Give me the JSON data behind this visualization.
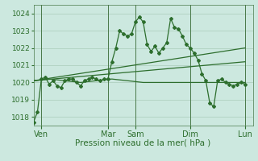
{
  "background_color": "#cce8df",
  "grid_color": "#aaccbb",
  "line_color": "#2d6e2d",
  "xlabel": "Pression niveau de la mer( hPa )",
  "xlabel_fontsize": 7.5,
  "ytick_fontsize": 6.5,
  "xtick_fontsize": 7,
  "ylim": [
    1017.5,
    1024.5
  ],
  "xlim": [
    0,
    28
  ],
  "xtick_labels": [
    "Ven",
    "Mar",
    "Sam",
    "Dim",
    "Lun"
  ],
  "xtick_positions": [
    1.0,
    9.5,
    13.0,
    20.0,
    27.0
  ],
  "vline_positions": [
    1.0,
    9.5,
    13.0,
    20.0,
    27.0
  ],
  "line1_x": [
    0.0,
    0.5,
    1.0,
    1.5,
    2.0,
    2.5,
    3.0,
    3.5,
    4.0,
    4.5,
    5.0,
    5.5,
    6.0,
    6.5,
    7.0,
    7.5,
    8.0,
    8.5,
    9.0,
    9.5,
    10.0,
    10.5,
    11.0,
    11.5,
    12.0,
    12.5,
    13.0,
    13.5,
    14.0,
    14.5,
    15.0,
    15.5,
    16.0,
    16.5,
    17.0,
    17.5,
    18.0,
    18.5,
    19.0,
    19.5,
    20.0,
    20.5,
    21.0,
    21.5,
    22.0,
    22.5,
    23.0,
    23.5,
    24.0,
    24.5,
    25.0,
    25.5,
    26.0,
    26.5,
    27.0
  ],
  "line1_y": [
    1017.7,
    1018.3,
    1020.2,
    1020.3,
    1019.9,
    1020.1,
    1019.8,
    1019.7,
    1020.1,
    1020.2,
    1020.2,
    1020.0,
    1019.8,
    1020.1,
    1020.2,
    1020.3,
    1020.2,
    1020.1,
    1020.2,
    1020.2,
    1021.2,
    1022.0,
    1023.0,
    1022.8,
    1022.7,
    1022.8,
    1023.5,
    1023.8,
    1023.5,
    1022.2,
    1021.8,
    1022.1,
    1021.7,
    1022.0,
    1022.3,
    1023.7,
    1023.2,
    1023.1,
    1022.7,
    1022.2,
    1022.0,
    1021.7,
    1021.3,
    1020.5,
    1020.1,
    1018.8,
    1018.6,
    1020.1,
    1020.2,
    1020.0,
    1019.9,
    1019.8,
    1019.9,
    1020.0,
    1019.9
  ],
  "line2_x": [
    0.0,
    2.0,
    4.0,
    6.0,
    8.0,
    10.0,
    12.0,
    14.0,
    16.0,
    18.0,
    20.0,
    22.0,
    24.0,
    26.0,
    27.0
  ],
  "line2_y": [
    1020.1,
    1020.2,
    1020.1,
    1020.0,
    1020.1,
    1020.2,
    1020.1,
    1020.0,
    1020.0,
    1020.0,
    1020.0,
    1020.0,
    1020.0,
    1020.0,
    1020.0
  ],
  "line3_x": [
    0.0,
    27.0
  ],
  "line3_y": [
    1020.1,
    1022.0
  ],
  "line4_x": [
    0.0,
    27.0
  ],
  "line4_y": [
    1020.1,
    1021.2
  ]
}
